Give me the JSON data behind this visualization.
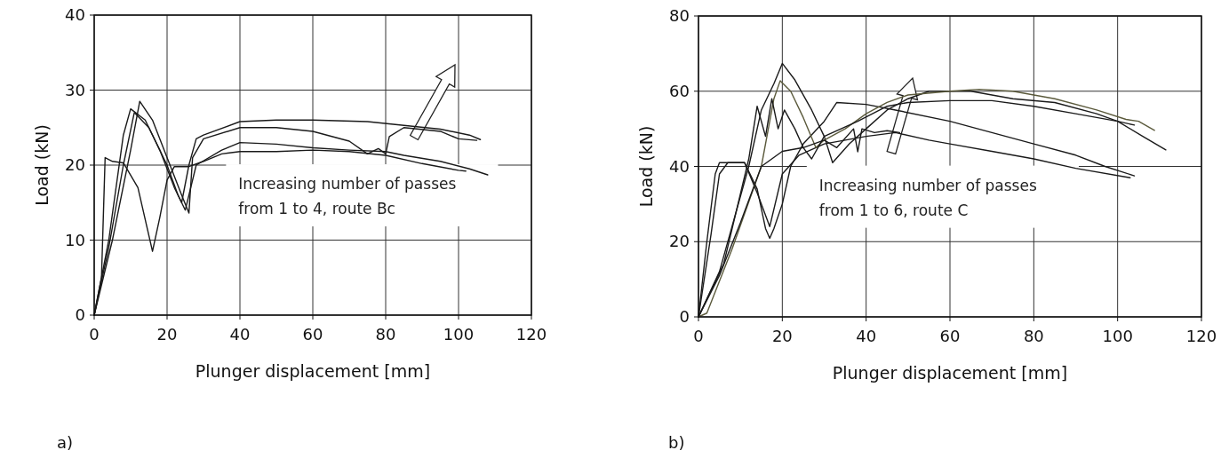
{
  "chart_data": [
    {
      "type": "line",
      "xlabel": "Plunger displacement [mm]",
      "ylabel": "Load (kN)",
      "xlim": [
        0,
        120
      ],
      "xticks": [
        0,
        20,
        40,
        60,
        80,
        100,
        120
      ],
      "ylim": [
        0,
        40
      ],
      "yticks": [
        0,
        10,
        20,
        30,
        40
      ],
      "grid": true,
      "marker": "none",
      "line_style": "solid",
      "annotations": [
        "Increasing number of passes\nfrom 1 to 4, route Bc",
        "a)"
      ],
      "series": [
        {
          "color": "#1a1a1a",
          "x": [
            0,
            2,
            3,
            5,
            8,
            12,
            16,
            18,
            20,
            22,
            26,
            30,
            35,
            40,
            50,
            60,
            70,
            80,
            90,
            100,
            102
          ],
          "values": [
            0,
            5,
            21,
            20.5,
            20.3,
            17,
            8.5,
            13,
            18,
            19.8,
            19.8,
            20.5,
            21.5,
            21.8,
            21.8,
            22,
            21.8,
            21.3,
            20.2,
            19.3,
            19.2
          ]
        },
        {
          "color": "#1a1a1a",
          "x": [
            0,
            4,
            8,
            10,
            14,
            18,
            22,
            24,
            26,
            28,
            30,
            40,
            50,
            60,
            75,
            85,
            95,
            103,
            106
          ],
          "values": [
            0,
            10,
            24,
            27.5,
            26,
            22,
            17,
            15,
            20,
            23.5,
            24,
            25.8,
            26,
            26,
            25.8,
            25.3,
            24.8,
            24,
            23.4
          ]
        },
        {
          "color": "#1a1a1a",
          "x": [
            0,
            5,
            10,
            12.5,
            16,
            20,
            24,
            26,
            27,
            30,
            40,
            50,
            60,
            70,
            75,
            78,
            80,
            81,
            85,
            95,
            100,
            105
          ],
          "values": [
            0,
            10,
            22,
            28.5,
            26,
            21,
            16,
            13.6,
            21,
            23.5,
            25,
            25,
            24.5,
            23.2,
            21.5,
            22.2,
            21.5,
            23.8,
            25,
            24.5,
            23.5,
            23.3
          ]
        },
        {
          "color": "#1a1a1a",
          "x": [
            0,
            4,
            8,
            11,
            15,
            20,
            23,
            25,
            28,
            35,
            40,
            50,
            60,
            70,
            80,
            85,
            95,
            103,
            108
          ],
          "values": [
            0,
            9,
            20,
            27,
            25,
            20,
            16,
            14,
            20,
            22,
            23,
            22.8,
            22.3,
            22,
            21.8,
            21.3,
            20.5,
            19.5,
            18.7
          ]
        }
      ]
    },
    {
      "type": "line",
      "xlabel": "Plunger displacement [mm]",
      "ylabel": "Load (kN)",
      "xlim": [
        0,
        120
      ],
      "xticks": [
        0,
        20,
        40,
        60,
        80,
        100,
        120
      ],
      "ylim": [
        0,
        80
      ],
      "yticks": [
        0,
        20,
        40,
        60,
        80
      ],
      "grid": true,
      "marker": "none",
      "line_style": "solid",
      "annotations": [
        "Increasing number of passes\nfrom 1 to 6, route C",
        "b)"
      ],
      "series": [
        {
          "color": "#1a1a1a",
          "x": [
            0,
            2,
            4,
            5,
            8,
            11,
            14,
            17,
            20,
            24,
            30,
            40,
            47,
            55,
            60,
            70,
            80,
            90,
            103
          ],
          "values": [
            0,
            20,
            38,
            41,
            41,
            41,
            33,
            24,
            38,
            43,
            46,
            48,
            49,
            47,
            46,
            44,
            42,
            39.5,
            37
          ]
        },
        {
          "color": "#1a1a1a",
          "x": [
            0,
            3,
            5,
            7,
            11,
            14,
            16,
            17,
            18,
            20,
            22,
            25,
            30,
            33,
            40,
            47,
            60,
            70,
            80,
            90,
            97,
            104
          ],
          "values": [
            0,
            22,
            38,
            41,
            41,
            34,
            23.5,
            20.9,
            23.5,
            30,
            40,
            46,
            52,
            57,
            56.5,
            55,
            52,
            49,
            46,
            43,
            40,
            37.5
          ]
        },
        {
          "color": "#1a1a1a",
          "x": [
            0,
            5,
            12,
            15,
            18,
            20,
            23,
            27,
            30,
            32,
            36,
            40,
            45,
            50,
            55,
            65,
            75,
            85,
            95,
            100,
            106,
            111.5
          ],
          "values": [
            0,
            12,
            40,
            55,
            62,
            67.4,
            63,
            55,
            48,
            41,
            46,
            50,
            55,
            58,
            60,
            60,
            58,
            57,
            54,
            52,
            48,
            44.4
          ]
        },
        {
          "color": "#5b5a3c",
          "x": [
            0,
            2,
            8,
            15,
            18,
            19.5,
            22,
            25,
            28,
            30,
            35,
            40,
            45,
            50,
            60,
            67,
            75,
            85,
            95,
            102,
            105,
            108.8
          ],
          "values": [
            0,
            1,
            18,
            40,
            58,
            62.8,
            60,
            53,
            45,
            47,
            50,
            54,
            57,
            59,
            60,
            60.5,
            60,
            58,
            55,
            52.5,
            52,
            49.6
          ]
        },
        {
          "color": "#1a1a1a",
          "x": [
            0,
            6,
            12,
            14,
            16,
            17.5,
            19,
            20.5,
            23,
            25,
            27,
            30,
            38,
            45,
            50,
            60,
            70,
            80,
            90,
            100,
            104
          ],
          "values": [
            0,
            14,
            42,
            56,
            48,
            58,
            50,
            55,
            50,
            45,
            42,
            48,
            52,
            56,
            57,
            57.5,
            57.5,
            56,
            54,
            52,
            51
          ]
        },
        {
          "color": "#1a1a1a",
          "x": [
            0,
            5,
            10,
            15,
            20,
            25,
            30,
            33,
            37,
            38,
            39,
            42,
            45,
            48
          ],
          "values": [
            0,
            11,
            25,
            40,
            44,
            45,
            47,
            45,
            50,
            43.9,
            50,
            49,
            49.5,
            49
          ]
        }
      ]
    }
  ]
}
